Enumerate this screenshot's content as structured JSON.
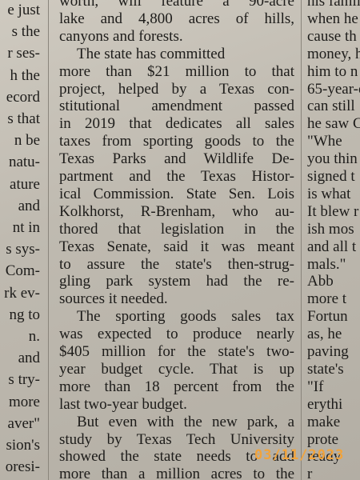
{
  "columns": {
    "left": {
      "lines": [
        "e just",
        "s the",
        "r ses-",
        "h the",
        "ecord",
        "s that",
        "n be",
        "natu-",
        "ature",
        "and",
        "nt in",
        "s sys-",
        "Com-",
        "rk ev-",
        "ng to",
        "n.",
        "and",
        "s try-",
        "more",
        "aver\"",
        "sion's",
        "oresi-"
      ]
    },
    "center": {
      "lines": [
        "worth, will feature a 90-acre",
        "lake and 4,800 acres of hills,",
        "canyons and forests.",
        "The state has committed",
        "more than $21 million to that",
        "project, helped by a Texas con-",
        "stitutional amendment passed",
        "in 2019 that dedicates all sales",
        "taxes from sporting goods to the",
        "Texas Parks and Wildlife De-",
        "partment and the Texas Histor-",
        "ical Commission. State Sen. Lois",
        "Kolkhorst, R-Brenham, who au-",
        "thored that legislation in the",
        "Texas Senate, said it was meant",
        "to assure the state's then-strug-",
        "gling park system had the re-",
        "sources it needed.",
        "The sporting goods sales tax",
        "was expected to produce nearly",
        "$405 million for the state's two-",
        "year budget cycle. That is up",
        "more than 18 percent from the",
        "last two-year budget.",
        "But even with the new park, a",
        "study by Texas Tech University",
        "showed the state needs to add",
        "more than a million acres to the"
      ]
    },
    "right": {
      "lines": [
        "his family",
        "when he",
        "cause th",
        "money, h",
        "him to n",
        "65-year-o",
        "can still",
        "he saw C",
        "\"Whe",
        "you thin",
        "signed t",
        "is what",
        "It blew r",
        "ish mos",
        "and all t",
        "mals.\"",
        "Abb",
        "more t",
        "Fortun",
        "as, he",
        "paving",
        "state's",
        "\"If",
        "erythi",
        "make",
        "prote",
        "ready",
        "r"
      ]
    }
  },
  "stamp": "03/11/2023"
}
